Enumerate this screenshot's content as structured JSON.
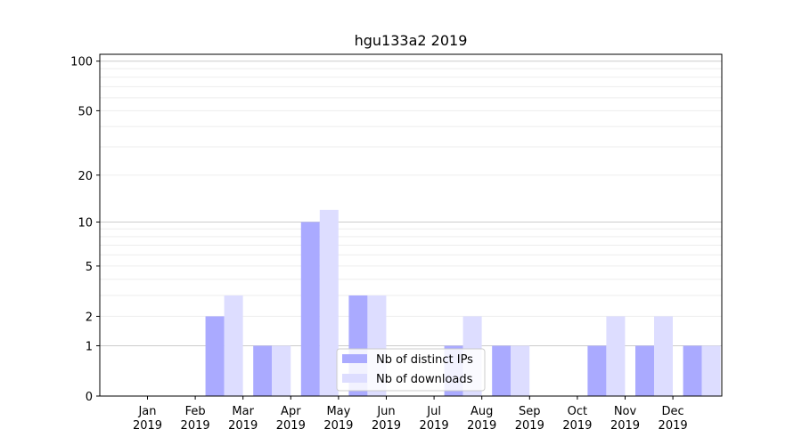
{
  "chart_data": {
    "type": "bar",
    "title": "hgu133a2 2019",
    "xlabel": "",
    "ylabel": "",
    "categories": [
      {
        "month": "Jan",
        "year": "2019"
      },
      {
        "month": "Feb",
        "year": "2019"
      },
      {
        "month": "Mar",
        "year": "2019"
      },
      {
        "month": "Apr",
        "year": "2019"
      },
      {
        "month": "May",
        "year": "2019"
      },
      {
        "month": "Jun",
        "year": "2019"
      },
      {
        "month": "Jul",
        "year": "2019"
      },
      {
        "month": "Aug",
        "year": "2019"
      },
      {
        "month": "Sep",
        "year": "2019"
      },
      {
        "month": "Oct",
        "year": "2019"
      },
      {
        "month": "Nov",
        "year": "2019"
      },
      {
        "month": "Dec",
        "year": "2019"
      }
    ],
    "series": [
      {
        "name": "Nb of distinct IPs",
        "color": "#aaaaff",
        "values": [
          0,
          2,
          1,
          10,
          3,
          0,
          1,
          1,
          0,
          1,
          1,
          1
        ]
      },
      {
        "name": "Nb of downloads",
        "color": "#ddddff",
        "values": [
          0,
          3,
          1,
          12,
          3,
          0,
          2,
          1,
          0,
          2,
          2,
          1
        ]
      }
    ],
    "yscale": "log1p",
    "ylim": [
      0,
      110
    ],
    "yticks": [
      0,
      1,
      2,
      5,
      10,
      20,
      50,
      100
    ],
    "major_gridlines": [
      1,
      10,
      100
    ],
    "grid": true,
    "legend_position": "lower-center"
  }
}
